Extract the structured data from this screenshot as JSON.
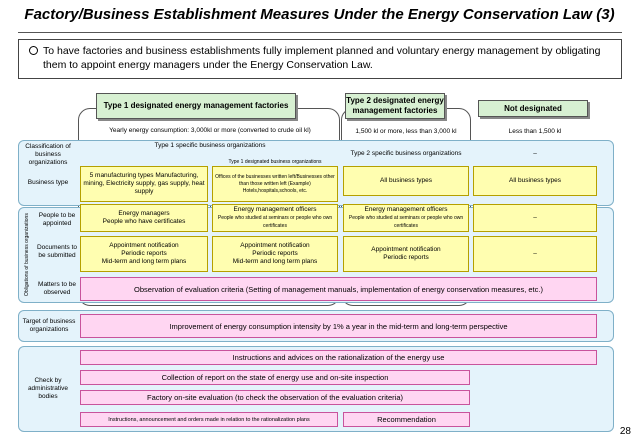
{
  "title": "Factory/Business Establishment Measures Under the Energy Conservation Law (3)",
  "intro": "To have factories and business establishments fully implement planned and voluntary energy management by obligating them to appoint energy managers under the Energy Conservation Law.",
  "headers": {
    "type1": "Type 1 designated energy management factories",
    "type2": "Type 2 designated energy management factories",
    "not": "Not designated"
  },
  "consumption": {
    "type1": "Yearly energy consumption: 3,000kl or more (converted to crude oil kl)",
    "type2": "1,500 kl or more, less than 3,000 kl",
    "not": "Less than 1,500 kl"
  },
  "classification": {
    "label": "Classification of business organizations",
    "type1": "Type 1 specific business organizations",
    "type1_sub": "Type 1 designated business organizations",
    "type2": "Type 2 specific business organizations",
    "not": "–"
  },
  "business_type": {
    "label": "Business type",
    "type1a": "5 manufacturing types Manufacturing, mining, Electricity supply, gas supply, heat supply",
    "type1b": "Offices of the businesses written left/Businesses other than those written left (Example) Hotels,hospitals,schools, etc.",
    "type2": "All business types",
    "not": "All business types"
  },
  "obligations_label": "Obligations of business organizations",
  "people": {
    "label": "People to be appointed",
    "type1a_title": "Energy managers",
    "type1a_sub": "People who have certificates",
    "type1b_title": "Energy management officers",
    "type1b_sub": "People who studied at seminars or people who own certificates",
    "type2_title": "Energy management officers",
    "type2_sub": "People who studied at seminars or people who own certificates",
    "not": "–"
  },
  "documents": {
    "label": "Documents to be submitted",
    "type1a": [
      "Appointment notification",
      "Periodic reports",
      "Mid-term and long term plans"
    ],
    "type1b": [
      "Appointment notification",
      "Periodic reports",
      "Mid-term and long term plans"
    ],
    "type2": [
      "Appointment notification",
      "Periodic reports"
    ],
    "not": "–"
  },
  "matters": {
    "label": "Matters to be observed",
    "text": "Observation of evaluation criteria (Setting of management manuals, implementation of energy conservation measures, etc.)"
  },
  "target": {
    "label": "Target of business organizations",
    "text": "Improvement of energy consumption intensity by 1% a year in the mid-term and long-term perspective"
  },
  "check": {
    "label": "Check by administrative bodies",
    "row1": "Instructions and advices on the rationalization of the energy use",
    "row2": "Collection of report on the state of energy use and on-site inspection",
    "row3": "Factory on-site evaluation (to check the observation of the evaluation criteria)",
    "row4a": "Instructions, announcement and orders made in relation to the rationalization plans",
    "row4b": "Recommendation"
  },
  "page_number": "28"
}
